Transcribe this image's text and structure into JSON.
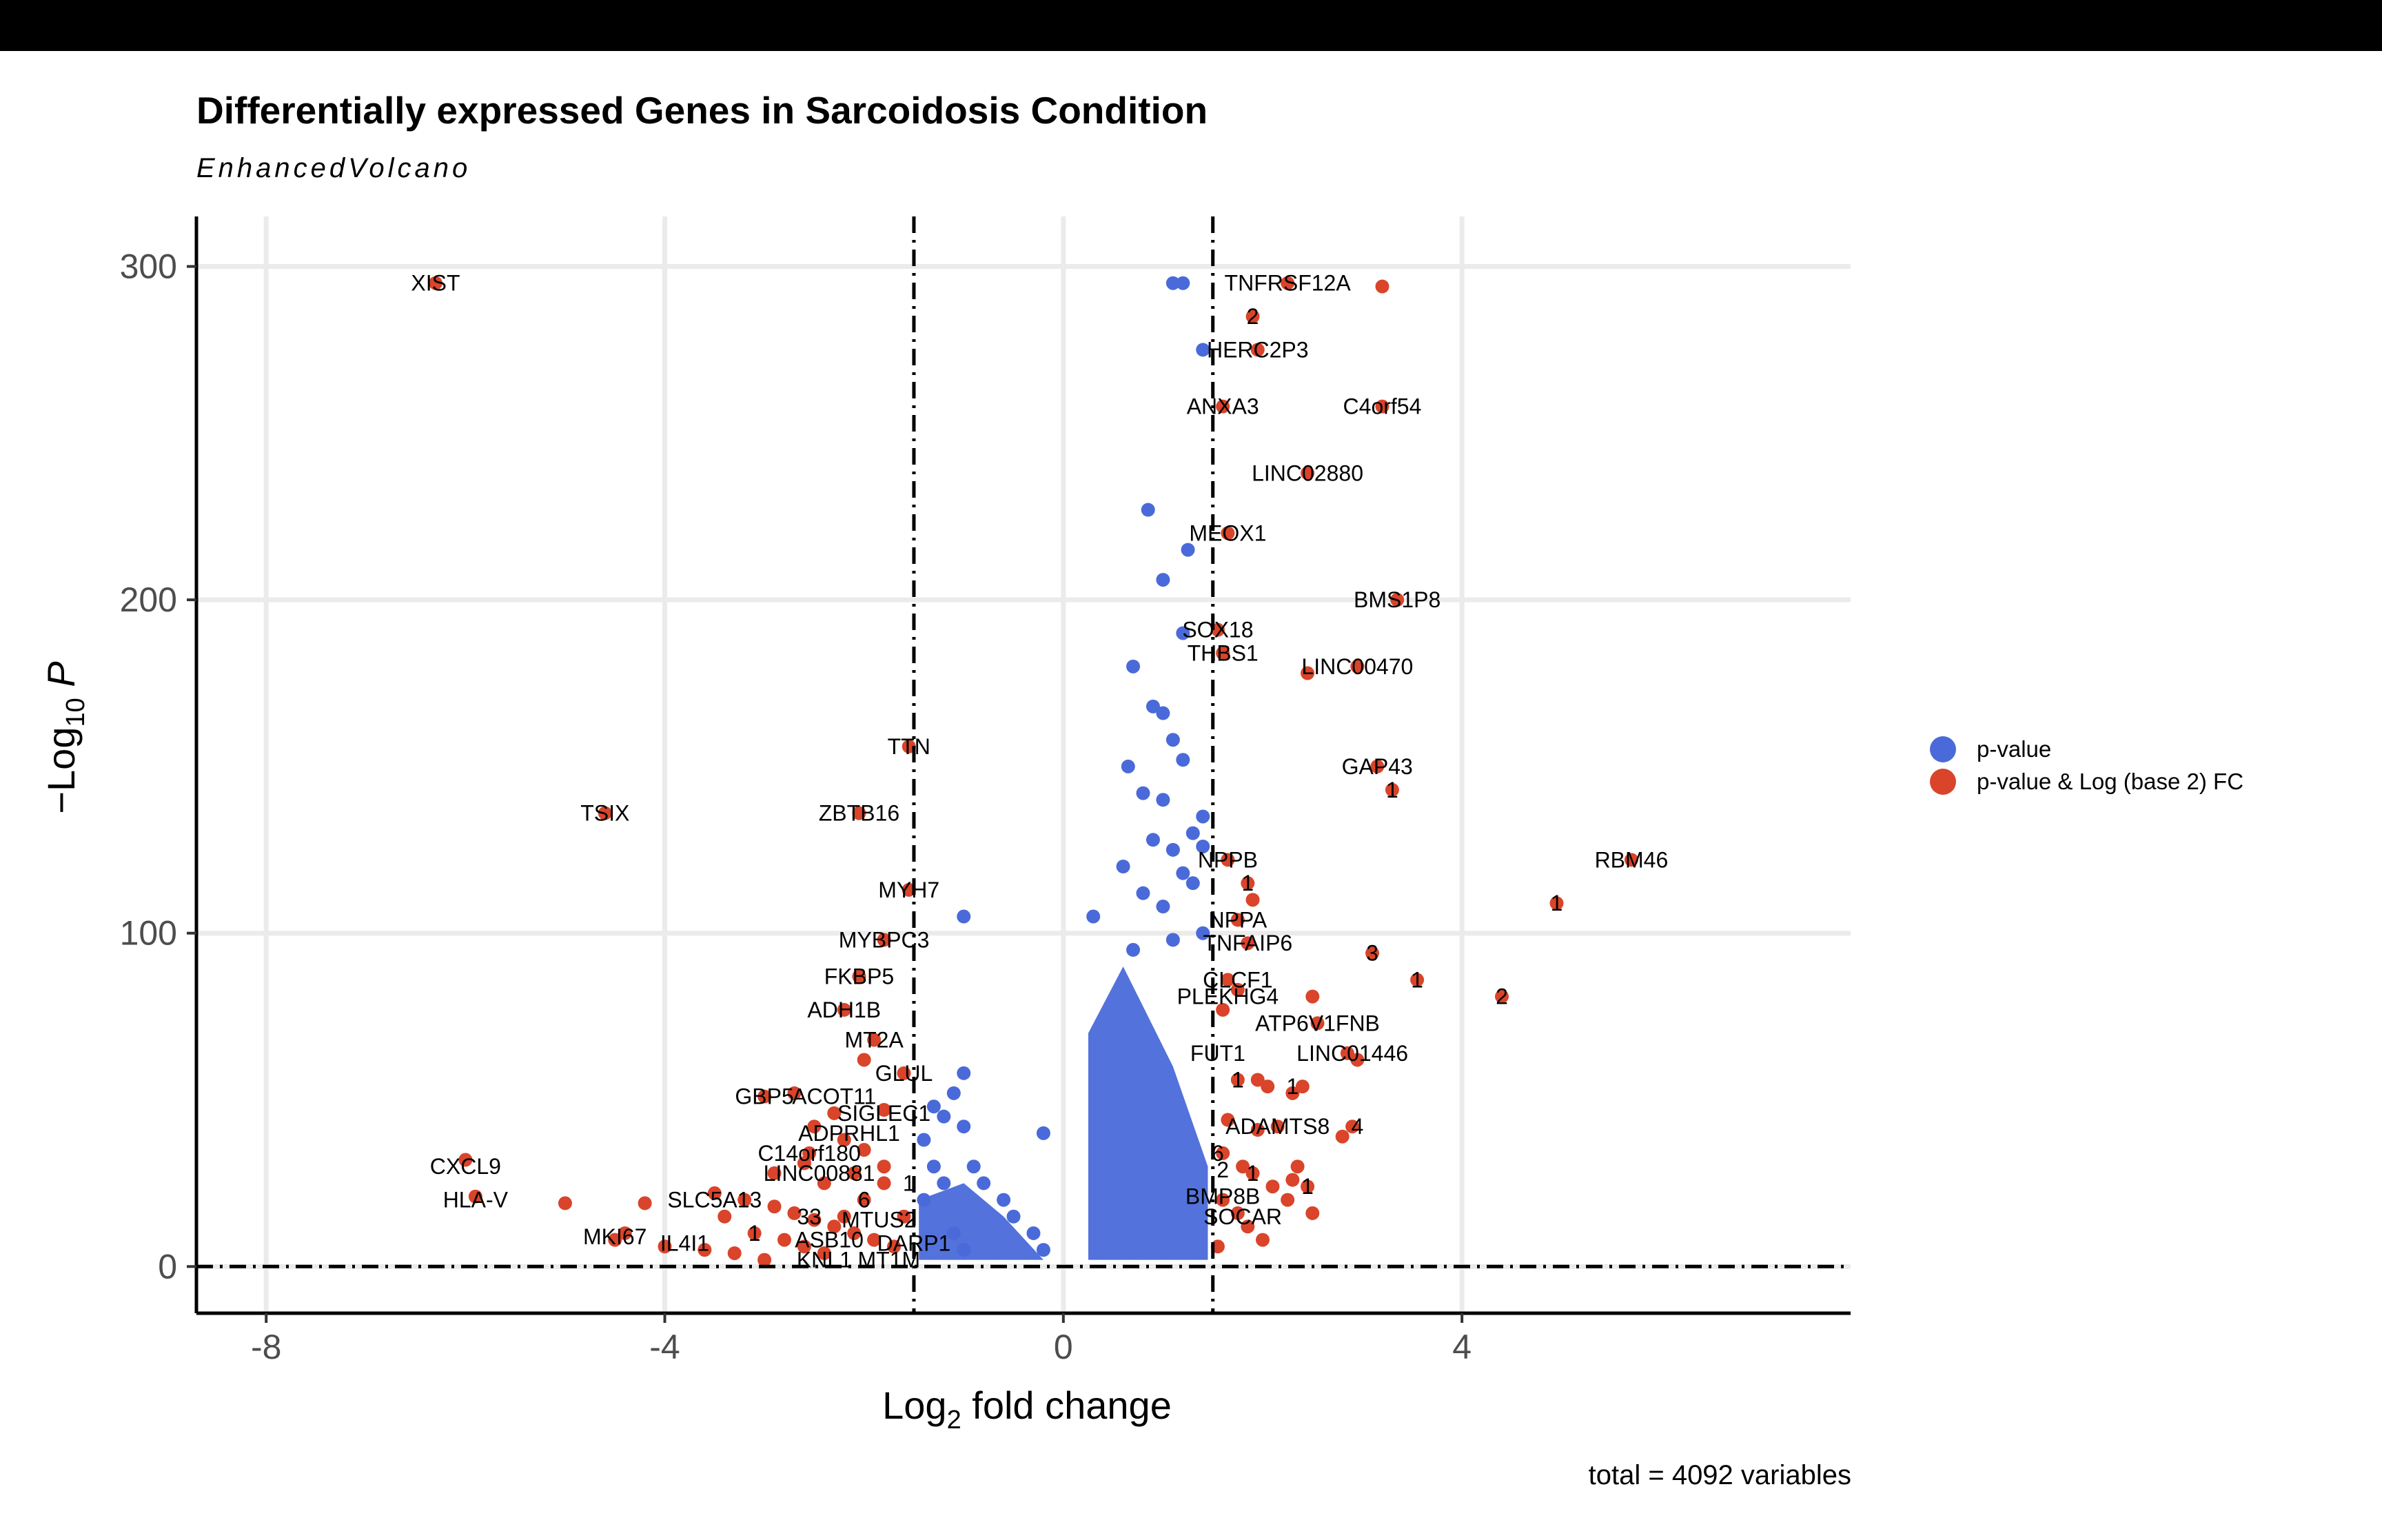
{
  "title": "Differentially expressed Genes in Sarcoidosis Condition",
  "subtitle": "EnhancedVolcano",
  "caption": "total = 4092 variables",
  "colors": {
    "p_value": "#4a6ad9",
    "p_value_fc": "#d9442a",
    "grid": "#ebebeb"
  },
  "legend": [
    {
      "label": "p-value",
      "color": "#4a6ad9"
    },
    {
      "label": "p-value & Log (base 2) FC",
      "color": "#d9442a"
    }
  ],
  "chart_data": {
    "type": "scatter",
    "title": "Differentially expressed Genes in Sarcoidosis Condition",
    "subtitle": "EnhancedVolcano",
    "xlabel": "Log2 fold change",
    "ylabel": "-Log10 P",
    "xlim": [
      -8.7,
      7.9
    ],
    "ylim": [
      -14,
      315
    ],
    "xticks": [
      -8,
      -4,
      0,
      4
    ],
    "yticks": [
      0,
      100,
      200,
      300
    ],
    "grid": true,
    "legend_position": "right",
    "fc_cutoff": 1.5,
    "p_cutoff_log10": 0,
    "series": [
      {
        "name": "p-value",
        "color": "#4a6ad9",
        "points": [
          [
            1.1,
            295
          ],
          [
            1.2,
            295
          ],
          [
            1.4,
            275
          ],
          [
            0.85,
            227
          ],
          [
            1.25,
            215
          ],
          [
            1.0,
            206
          ],
          [
            1.2,
            190
          ],
          [
            0.7,
            180
          ],
          [
            0.9,
            168
          ],
          [
            1.0,
            166
          ],
          [
            1.1,
            158
          ],
          [
            0.65,
            150
          ],
          [
            1.2,
            152
          ],
          [
            1.0,
            140
          ],
          [
            0.8,
            142
          ],
          [
            1.4,
            135
          ],
          [
            1.3,
            130
          ],
          [
            0.9,
            128
          ],
          [
            1.1,
            125
          ],
          [
            1.4,
            126
          ],
          [
            0.6,
            120
          ],
          [
            1.2,
            118
          ],
          [
            1.3,
            115
          ],
          [
            0.8,
            112
          ],
          [
            1.0,
            108
          ],
          [
            0.3,
            105
          ],
          [
            1.4,
            100
          ],
          [
            1.1,
            98
          ],
          [
            0.7,
            95
          ],
          [
            -1.0,
            105
          ],
          [
            -1.0,
            58
          ],
          [
            -1.1,
            52
          ],
          [
            -1.3,
            48
          ],
          [
            -1.2,
            45
          ],
          [
            -1.0,
            42
          ],
          [
            -0.2,
            40
          ],
          [
            -0.9,
            30
          ],
          [
            -0.8,
            25
          ],
          [
            -0.6,
            20
          ],
          [
            -0.5,
            15
          ],
          [
            -0.3,
            10
          ],
          [
            -0.2,
            5
          ],
          [
            -1.4,
            38
          ],
          [
            -1.3,
            30
          ],
          [
            -1.2,
            25
          ],
          [
            -1.4,
            20
          ],
          [
            -1.1,
            10
          ],
          [
            -1.0,
            5
          ]
        ]
      },
      {
        "name": "p-value & Log (base 2) FC",
        "color": "#d9442a",
        "points": [
          [
            -6.3,
            295
          ],
          [
            2.25,
            295
          ],
          [
            3.2,
            294
          ],
          [
            1.9,
            285
          ],
          [
            1.95,
            275
          ],
          [
            1.6,
            258
          ],
          [
            3.2,
            258
          ],
          [
            2.45,
            238
          ],
          [
            1.65,
            220
          ],
          [
            3.35,
            200
          ],
          [
            1.55,
            191
          ],
          [
            1.6,
            184
          ],
          [
            2.45,
            178
          ],
          [
            2.95,
            180
          ],
          [
            -1.55,
            156
          ],
          [
            3.15,
            150
          ],
          [
            3.3,
            143
          ],
          [
            -4.6,
            136
          ],
          [
            -2.05,
            136
          ],
          [
            5.7,
            122
          ],
          [
            1.65,
            122
          ],
          [
            1.85,
            115
          ],
          [
            1.9,
            110
          ],
          [
            4.95,
            109
          ],
          [
            -1.55,
            113
          ],
          [
            1.75,
            104
          ],
          [
            -1.8,
            98
          ],
          [
            1.85,
            97
          ],
          [
            3.1,
            94
          ],
          [
            3.55,
            86
          ],
          [
            4.4,
            81
          ],
          [
            -2.05,
            87
          ],
          [
            1.65,
            86
          ],
          [
            1.75,
            83
          ],
          [
            2.5,
            81
          ],
          [
            1.6,
            77
          ],
          [
            -2.2,
            77
          ],
          [
            2.55,
            73
          ],
          [
            -1.9,
            68
          ],
          [
            2.95,
            62
          ],
          [
            2.85,
            64
          ],
          [
            1.95,
            56
          ],
          [
            -2.0,
            62
          ],
          [
            1.75,
            56
          ],
          [
            2.05,
            54
          ],
          [
            2.4,
            54
          ],
          [
            2.3,
            52
          ],
          [
            -1.6,
            58
          ],
          [
            -2.7,
            52
          ],
          [
            -3.0,
            51
          ],
          [
            -2.3,
            46
          ],
          [
            -2.5,
            42
          ],
          [
            -1.8,
            47
          ],
          [
            1.95,
            41
          ],
          [
            2.15,
            42
          ],
          [
            2.9,
            42
          ],
          [
            2.8,
            39
          ],
          [
            -2.2,
            38
          ],
          [
            -2.0,
            35
          ],
          [
            -2.55,
            34
          ],
          [
            -2.6,
            31
          ],
          [
            -2.1,
            28
          ],
          [
            -1.8,
            30
          ],
          [
            1.6,
            34
          ],
          [
            1.8,
            30
          ],
          [
            1.9,
            28
          ],
          [
            2.3,
            26
          ],
          [
            2.45,
            24
          ],
          [
            -6.0,
            32
          ],
          [
            -5.9,
            21
          ],
          [
            -5.0,
            19
          ],
          [
            -4.2,
            19
          ],
          [
            -3.5,
            22
          ],
          [
            -3.2,
            20
          ],
          [
            -2.9,
            18
          ],
          [
            -2.7,
            16
          ],
          [
            -2.5,
            14
          ],
          [
            -2.3,
            12
          ],
          [
            -2.1,
            10
          ],
          [
            -1.9,
            8
          ],
          [
            -1.7,
            6
          ],
          [
            -4.4,
            10
          ],
          [
            -4.5,
            8
          ],
          [
            -4.0,
            6
          ],
          [
            -3.6,
            5
          ],
          [
            -3.1,
            10
          ],
          [
            -2.8,
            8
          ],
          [
            -2.6,
            6
          ],
          [
            -2.4,
            4
          ],
          [
            -3.3,
            4
          ],
          [
            1.6,
            20
          ],
          [
            1.75,
            16
          ],
          [
            1.85,
            12
          ],
          [
            2.0,
            8
          ],
          [
            1.55,
            6
          ],
          [
            2.25,
            20
          ],
          [
            2.5,
            16
          ],
          [
            2.1,
            24
          ],
          [
            2.35,
            30
          ],
          [
            1.65,
            44
          ],
          [
            -1.6,
            15
          ],
          [
            -1.8,
            25
          ],
          [
            -2.0,
            20
          ],
          [
            -2.2,
            15
          ],
          [
            -2.4,
            25
          ],
          [
            -3.0,
            2
          ],
          [
            -2.9,
            28
          ],
          [
            -3.4,
            15
          ]
        ]
      }
    ],
    "annotations": [
      {
        "label": "XIST",
        "x": -6.3,
        "y": 295
      },
      {
        "label": "TNFRSF12A",
        "x": 2.25,
        "y": 295
      },
      {
        "label": "2",
        "x": 1.9,
        "y": 285
      },
      {
        "label": "HERC2P3",
        "x": 1.95,
        "y": 275
      },
      {
        "label": "ANXA3",
        "x": 1.6,
        "y": 258
      },
      {
        "label": "C4orf54",
        "x": 3.2,
        "y": 258
      },
      {
        "label": "LINC02880",
        "x": 2.45,
        "y": 238
      },
      {
        "label": "MEOX1",
        "x": 1.65,
        "y": 220
      },
      {
        "label": "BMS1P8",
        "x": 3.35,
        "y": 200
      },
      {
        "label": "SOX18",
        "x": 1.55,
        "y": 191
      },
      {
        "label": "THBS1",
        "x": 1.6,
        "y": 184
      },
      {
        "label": "LINC00470",
        "x": 2.95,
        "y": 180
      },
      {
        "label": "TTN",
        "x": -1.55,
        "y": 156
      },
      {
        "label": "GAP43",
        "x": 3.15,
        "y": 150
      },
      {
        "label": "1",
        "x": 3.3,
        "y": 143
      },
      {
        "label": "TSIX",
        "x": -4.6,
        "y": 136
      },
      {
        "label": "ZBTB16",
        "x": -2.05,
        "y": 136
      },
      {
        "label": "RBM46",
        "x": 5.7,
        "y": 122
      },
      {
        "label": "NPPB",
        "x": 1.65,
        "y": 122
      },
      {
        "label": "1",
        "x": 1.85,
        "y": 115
      },
      {
        "label": "MYH7",
        "x": -1.55,
        "y": 113
      },
      {
        "label": "1",
        "x": 4.95,
        "y": 109
      },
      {
        "label": "NPPA",
        "x": 1.75,
        "y": 104
      },
      {
        "label": "MYBPC3",
        "x": -1.8,
        "y": 98
      },
      {
        "label": "TNFAIP6",
        "x": 1.85,
        "y": 97
      },
      {
        "label": "3",
        "x": 3.1,
        "y": 94
      },
      {
        "label": "FKBP5",
        "x": -2.05,
        "y": 87
      },
      {
        "label": "1",
        "x": 3.55,
        "y": 86
      },
      {
        "label": "CLCF1",
        "x": 1.75,
        "y": 86
      },
      {
        "label": "2",
        "x": 4.4,
        "y": 81
      },
      {
        "label": "PLEKHG4",
        "x": 1.65,
        "y": 81
      },
      {
        "label": "ADH1B",
        "x": -2.2,
        "y": 77
      },
      {
        "label": "ATP6V1FNB",
        "x": 2.55,
        "y": 73
      },
      {
        "label": "MT2A",
        "x": -1.9,
        "y": 68
      },
      {
        "label": "FUT1",
        "x": 1.55,
        "y": 64
      },
      {
        "label": "LINC01446",
        "x": 2.9,
        "y": 64
      },
      {
        "label": "GLUL",
        "x": -1.6,
        "y": 58
      },
      {
        "label": "1",
        "x": 1.75,
        "y": 56
      },
      {
        "label": "1",
        "x": 2.3,
        "y": 54
      },
      {
        "label": "GBP5",
        "x": -3.0,
        "y": 51
      },
      {
        "label": "ACOT11",
        "x": -2.3,
        "y": 51
      },
      {
        "label": "SIGLEC1",
        "x": -1.8,
        "y": 46
      },
      {
        "label": "ADAMTS8",
        "x": 2.15,
        "y": 42
      },
      {
        "label": "4",
        "x": 2.95,
        "y": 42
      },
      {
        "label": "ADPRHL1",
        "x": -2.15,
        "y": 40
      },
      {
        "label": "C14orf180",
        "x": -2.55,
        "y": 34
      },
      {
        "label": "6",
        "x": 1.55,
        "y": 34
      },
      {
        "label": "CXCL9",
        "x": -6.0,
        "y": 30
      },
      {
        "label": "LINC00881",
        "x": -2.45,
        "y": 28
      },
      {
        "label": "2",
        "x": 1.6,
        "y": 29
      },
      {
        "label": "1",
        "x": 1.9,
        "y": 28
      },
      {
        "label": "1",
        "x": -1.55,
        "y": 25
      },
      {
        "label": "1",
        "x": 2.45,
        "y": 24
      },
      {
        "label": "HLA-V",
        "x": -5.9,
        "y": 20
      },
      {
        "label": "SLC5A13",
        "x": -3.5,
        "y": 20
      },
      {
        "label": "6",
        "x": -2.0,
        "y": 20
      },
      {
        "label": "BMP8B",
        "x": 1.6,
        "y": 21
      },
      {
        "label": "33",
        "x": -2.55,
        "y": 15
      },
      {
        "label": "MTUS2",
        "x": -1.85,
        "y": 14
      },
      {
        "label": "SOCAR",
        "x": 1.8,
        "y": 15
      },
      {
        "label": "MKI67",
        "x": -4.5,
        "y": 9
      },
      {
        "label": "IL4I1",
        "x": -3.8,
        "y": 7
      },
      {
        "label": "1",
        "x": -3.1,
        "y": 10
      },
      {
        "label": "ASB10",
        "x": -2.35,
        "y": 8
      },
      {
        "label": "DARP1",
        "x": -1.5,
        "y": 7
      },
      {
        "label": "KNL1",
        "x": -2.4,
        "y": 2
      },
      {
        "label": "MT1M",
        "x": -1.75,
        "y": 2
      }
    ]
  }
}
